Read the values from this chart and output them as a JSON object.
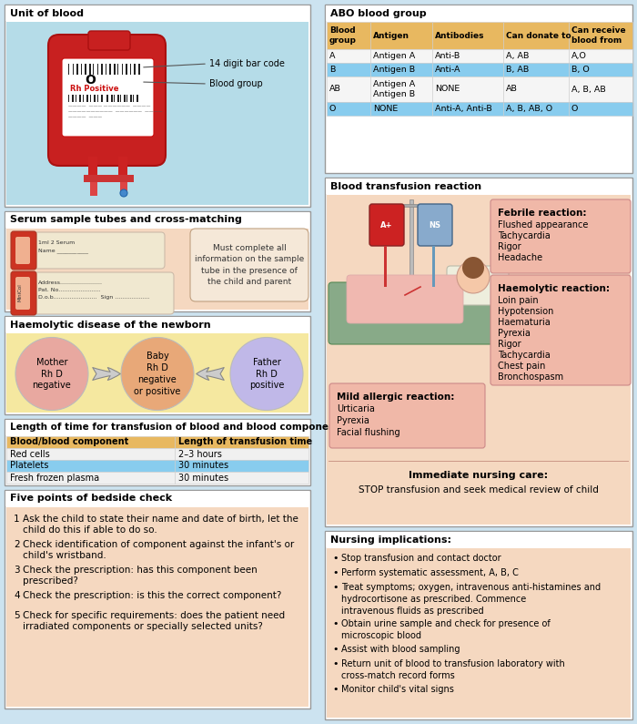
{
  "bg_color": "#cce3f0",
  "panel_border_color": "#aaaaaa",
  "panel_bg": "#ffffff",
  "unit_blood_title": "Unit of blood",
  "unit_blood_bg": "#b8dde8",
  "serum_title": "Serum sample tubes and cross-matching",
  "serum_bg": "#f5d8c0",
  "serum_note": "Must complete all\ninformation on the sample\ntube in the presence of\nthe child and parent",
  "haemolytic_title": "Haemolytic disease of the newborn",
  "haemolytic_bg": "#f5e8a0",
  "haemolytic_circles": [
    "Mother\nRh D\nnegative",
    "Baby\nRh D\nnegative\nor positive",
    "Father\nRh D\npositive"
  ],
  "haemolytic_circle_colors": [
    "#e8a8a0",
    "#e8a878",
    "#c0b8e8"
  ],
  "transfusion_title": "Length of time for transfusion of blood and blood component",
  "transfusion_data": [
    [
      "Blood/blood component",
      "Length of transfusion time"
    ],
    [
      "Red cells",
      "2–3 hours"
    ],
    [
      "Platelets",
      "30 minutes"
    ],
    [
      "Fresh frozen plasma",
      "30 minutes"
    ]
  ],
  "transfusion_row_colors": [
    "#e8b860",
    "#f0f0f0",
    "#88ccee",
    "#f0f0f0"
  ],
  "bedside_title": "Five points of bedside check",
  "bedside_bg": "#f5d8c0",
  "bedside_items": [
    "Ask the child to state their name and date of birth, let the\nchild do this if able to do so.",
    "Check identification of component against the infant's or\nchild's wristband.",
    "Check the prescription: has this component been\nprescribed?",
    "Check the prescription: is this the correct component?",
    "Check for specific requirements: does the patient need\nirradiated components or specially selected units?"
  ],
  "abo_title": "ABO blood group",
  "abo_bg": "#ffffff",
  "abo_header_bg": "#e8b860",
  "abo_row_colors": [
    "#f5f5f5",
    "#88ccee",
    "#f5f5f5",
    "#88ccee"
  ],
  "abo_data": [
    [
      "Blood\ngroup",
      "Antigen",
      "Antibodies",
      "Can donate to",
      "Can receive\nblood from"
    ],
    [
      "A",
      "Antigen A",
      "Anti-B",
      "A, AB",
      "A,O"
    ],
    [
      "B",
      "Antigen B",
      "Anti-A",
      "B, AB",
      "B, O"
    ],
    [
      "AB",
      "Antigen A\nAntigen B",
      "NONE",
      "AB",
      "A, B, AB"
    ],
    [
      "O",
      "NONE",
      "Anti-A, Anti-B",
      "A, B, AB, O",
      "O"
    ]
  ],
  "reaction_title": "Blood transfusion reaction",
  "reaction_bg": "#f5d8c0",
  "febrile_title": "Febrile reaction:",
  "febrile_items": [
    "Flushed appearance",
    "Tachycardia",
    "Rigor",
    "Headache"
  ],
  "febrile_bg": "#f0b8a8",
  "haemolytic_reaction_title": "Haemolytic reaction:",
  "haemolytic_reaction_items": [
    "Loin pain",
    "Hypotension",
    "Haematuria",
    "Pyrexia",
    "Rigor",
    "Tachycardia",
    "Chest pain",
    "Bronchospasm"
  ],
  "haemolytic_reaction_bg": "#f0b8a8",
  "mild_allergic_title": "Mild allergic reaction:",
  "mild_allergic_items": [
    "Urticaria",
    "Pyrexia",
    "Facial flushing"
  ],
  "mild_allergic_bg": "#f0b8a8",
  "immediate_care_title": "Immediate nursing care:",
  "immediate_care_text": "STOP transfusion and seek medical review of child",
  "nursing_title": "Nursing implications:",
  "nursing_bg": "#f5d8c0",
  "nursing_items": [
    "Stop transfusion and contact doctor",
    "Perform systematic assessment, A, B, C",
    "Treat symptoms; oxygen, intravenous anti-histamines and\nhydrocortisone as prescribed. Commence\nintravenous fluids as prescribed",
    "Obtain urine sample and check for presence of\nmicroscopic blood",
    "Assist with blood sampling",
    "Return unit of blood to transfusion laboratory with\ncross-match record forms",
    "Monitor child's vital signs"
  ]
}
